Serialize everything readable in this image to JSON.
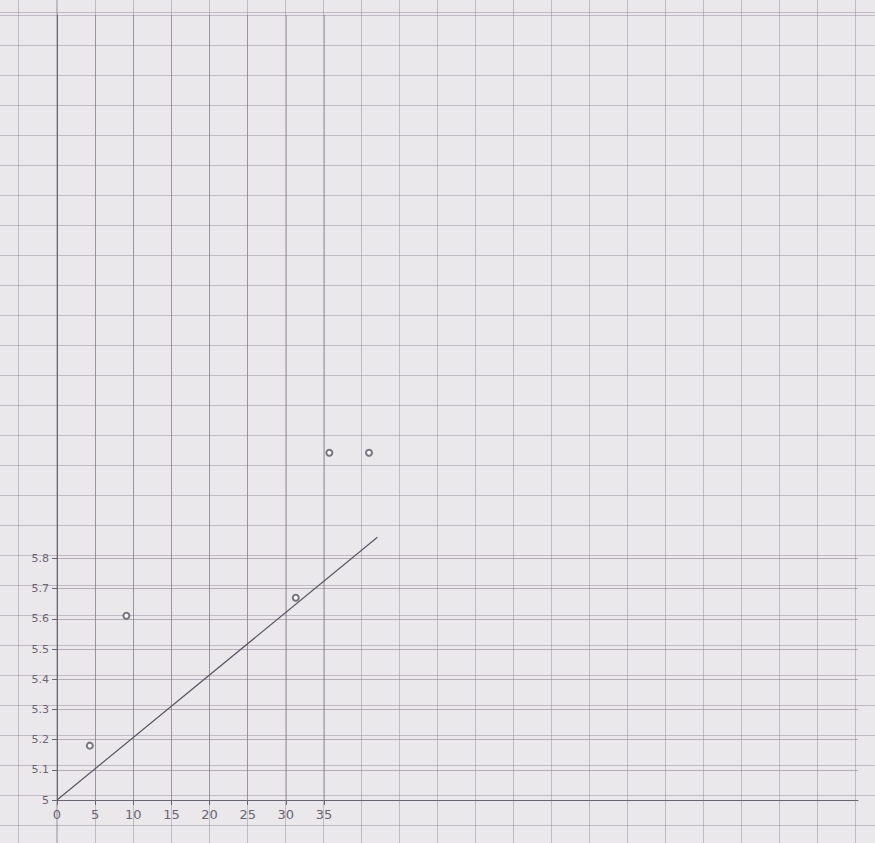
{
  "chart_data": {
    "type": "scatter",
    "xlim": [
      0,
      105
    ],
    "ylim": [
      5.0,
      7.6
    ],
    "xticks": [
      0,
      5,
      10,
      15,
      20,
      25,
      30,
      35
    ],
    "yticks": [
      5,
      5.1,
      5.2,
      5.3,
      5.4,
      5.5,
      5.6,
      5.7,
      5.8
    ],
    "grid": true,
    "series": [
      {
        "type": "scatter",
        "x": [
          4.3,
          9.1,
          31.3,
          35.7,
          40.9
        ],
        "values": [
          5.18,
          5.61,
          5.67,
          6.15,
          6.15
        ],
        "color": "#5a5660",
        "marker": "circle"
      },
      {
        "type": "line",
        "x": [
          0,
          42
        ],
        "values": [
          5.0,
          5.87
        ],
        "color": "#5a5660",
        "marker": "arrow"
      }
    ]
  }
}
